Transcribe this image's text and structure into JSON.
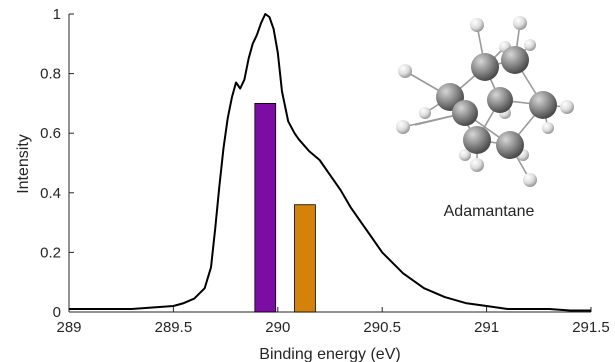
{
  "chart_data": {
    "type": "line",
    "xlabel": "Binding energy (eV)",
    "ylabel": "Intensity",
    "xlim": [
      289,
      291.5
    ],
    "ylim": [
      0,
      1
    ],
    "x_ticks": [
      "289",
      "289.5",
      "290",
      "290.5",
      "291",
      "291.5"
    ],
    "y_ticks": [
      "0",
      "0.2",
      "0.4",
      "0.6",
      "0.8",
      "1"
    ],
    "grid": false,
    "annotation": "Adamantane",
    "series": [
      {
        "kind": "line",
        "color": "#000000",
        "x": [
          289.0,
          289.1,
          289.2,
          289.3,
          289.4,
          289.5,
          289.55,
          289.6,
          289.65,
          289.68,
          289.7,
          289.72,
          289.74,
          289.76,
          289.78,
          289.8,
          289.82,
          289.84,
          289.86,
          289.88,
          289.9,
          289.92,
          289.94,
          289.96,
          289.98,
          290.0,
          290.02,
          290.05,
          290.08,
          290.1,
          290.15,
          290.2,
          290.25,
          290.3,
          290.35,
          290.4,
          290.45,
          290.5,
          290.6,
          290.7,
          290.8,
          290.9,
          291.0,
          291.1,
          291.2,
          291.3,
          291.4,
          291.5
        ],
        "y": [
          0.01,
          0.01,
          0.01,
          0.01,
          0.015,
          0.02,
          0.03,
          0.045,
          0.08,
          0.15,
          0.28,
          0.42,
          0.55,
          0.65,
          0.72,
          0.77,
          0.75,
          0.78,
          0.85,
          0.9,
          0.93,
          0.97,
          1.0,
          0.99,
          0.95,
          0.87,
          0.74,
          0.64,
          0.6,
          0.58,
          0.54,
          0.51,
          0.46,
          0.41,
          0.35,
          0.3,
          0.25,
          0.2,
          0.13,
          0.08,
          0.05,
          0.03,
          0.02,
          0.01,
          0.01,
          0.01,
          0.005,
          0.005
        ]
      },
      {
        "kind": "bar",
        "color": "#7b0ca4",
        "x": [
          289.94
        ],
        "y": [
          0.7
        ],
        "width": 0.1
      },
      {
        "kind": "bar",
        "color": "#d4820a",
        "x": [
          290.13
        ],
        "y": [
          0.36
        ],
        "width": 0.1
      }
    ]
  }
}
